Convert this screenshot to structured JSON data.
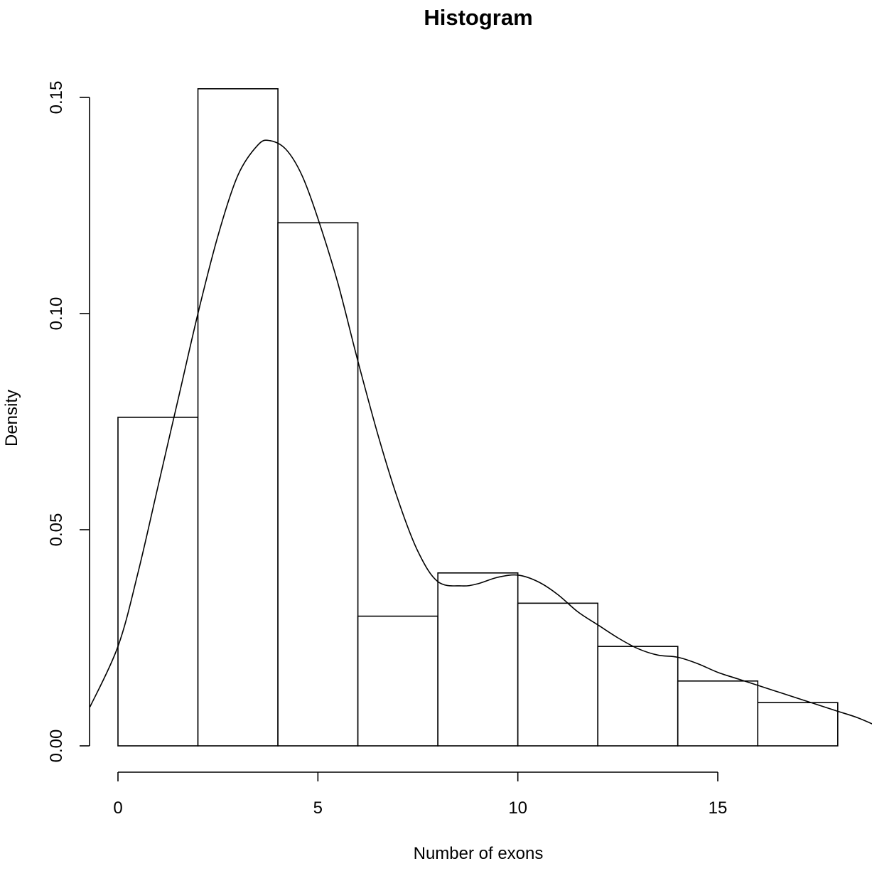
{
  "chart_data": {
    "type": "histogram",
    "title": "Histogram",
    "xlabel": "Number of exons",
    "ylabel": "Density",
    "bins": [
      {
        "start": 0,
        "end": 2,
        "density": 0.076
      },
      {
        "start": 2,
        "end": 4,
        "density": 0.152
      },
      {
        "start": 4,
        "end": 6,
        "density": 0.121
      },
      {
        "start": 6,
        "end": 8,
        "density": 0.03
      },
      {
        "start": 8,
        "end": 10,
        "density": 0.04
      },
      {
        "start": 10,
        "end": 12,
        "density": 0.033
      },
      {
        "start": 12,
        "end": 14,
        "density": 0.023
      },
      {
        "start": 14,
        "end": 16,
        "density": 0.015
      },
      {
        "start": 16,
        "end": 18,
        "density": 0.01
      }
    ],
    "density_curve": {
      "x": [
        -0.7,
        0,
        0.5,
        1,
        1.5,
        2,
        2.5,
        3,
        3.5,
        3.8,
        4.2,
        4.6,
        5,
        5.5,
        6,
        6.5,
        7,
        7.5,
        8,
        8.6,
        9,
        9.5,
        10,
        10.5,
        11,
        11.5,
        12,
        12.5,
        13,
        13.5,
        14,
        14.5,
        15,
        15.5,
        16,
        16.5,
        17,
        17.5,
        18,
        18.5,
        19
      ],
      "y": [
        0.009,
        0.023,
        0.04,
        0.06,
        0.08,
        0.1,
        0.118,
        0.132,
        0.139,
        0.14,
        0.138,
        0.132,
        0.122,
        0.107,
        0.089,
        0.072,
        0.057,
        0.045,
        0.038,
        0.037,
        0.0375,
        0.039,
        0.0395,
        0.038,
        0.035,
        0.031,
        0.028,
        0.025,
        0.0225,
        0.021,
        0.0205,
        0.019,
        0.017,
        0.0155,
        0.014,
        0.0125,
        0.011,
        0.0095,
        0.008,
        0.0065,
        0.0045
      ]
    },
    "xlim": [
      -0.7,
      19
    ],
    "ylim": [
      0,
      0.15
    ],
    "x_ticks": [
      0,
      5,
      10,
      15
    ],
    "x_tick_labels": [
      "0",
      "5",
      "10",
      "15"
    ],
    "y_ticks": [
      0,
      0.05,
      0.1,
      0.15
    ],
    "y_tick_labels": [
      "0.00",
      "0.05",
      "0.10",
      "0.15"
    ],
    "grid": false,
    "legend": "none"
  }
}
